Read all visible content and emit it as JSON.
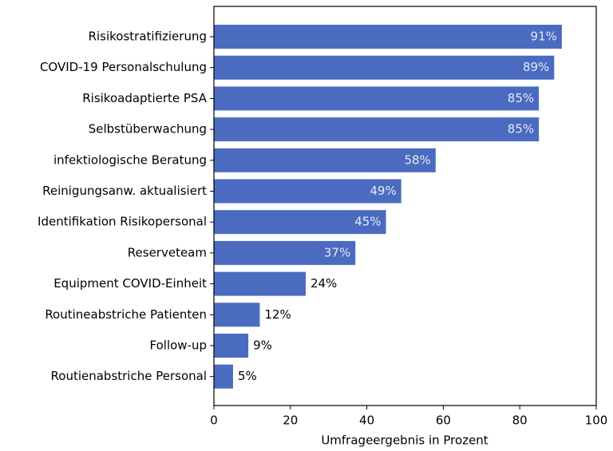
{
  "chart_data": {
    "type": "barh",
    "categories": [
      "Risikostratifizierung",
      "COVID-19 Personalschulung",
      "Risikoadaptierte PSA",
      "Selbstüberwachung",
      "infektiologische Beratung",
      "Reinigungsanw. aktualisiert",
      "Identifikation Risikopersonal",
      "Reserveteam",
      "Equipment COVID-Einheit",
      "Routineabstriche Patienten",
      "Follow-up",
      "Routienabstriche Personal"
    ],
    "values": [
      91,
      89,
      85,
      85,
      58,
      49,
      45,
      37,
      24,
      12,
      9,
      5
    ],
    "value_labels": [
      "91%",
      "89%",
      "85%",
      "85%",
      "58%",
      "49%",
      "45%",
      "37%",
      "24%",
      "12%",
      "9%",
      "5%"
    ],
    "color": "#4a6bc0",
    "xlabel": "Umfrageergebnis in Prozent",
    "xlim": [
      0,
      100
    ],
    "xticks": [
      0,
      20,
      40,
      60,
      80,
      100
    ]
  }
}
